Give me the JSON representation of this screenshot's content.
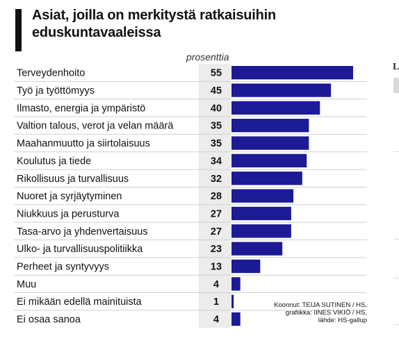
{
  "title": "Asiat, joilla on merkitystä ratkaisuihin eduskuntavaaleissa",
  "chart_data": {
    "type": "bar",
    "orientation": "horizontal",
    "title": "Asiat, joilla on merkitystä ratkaisuihin eduskuntavaaleissa",
    "value_header": "prosenttia",
    "categories": [
      "Terveydenhoito",
      "Työ ja työttömyys",
      "Ilmasto, energia ja ympäristö",
      "Valtion talous, verot ja velan määrä",
      "Maahanmuutto ja siirtolaisuus",
      "Koulutus ja tiede",
      "Rikollisuus ja turvallisuus",
      "Nuoret ja syrjäytyminen",
      "Niukkuus ja perusturva",
      "Tasa-arvo ja yhdenvertaisuus",
      "Ulko- ja turvallisuuspolitiikka",
      "Perheet ja syntyvyys",
      "Muu",
      "Ei mikään edellä mainituista",
      "Ei osaa sanoa"
    ],
    "values": [
      55,
      45,
      40,
      35,
      35,
      34,
      32,
      28,
      27,
      27,
      23,
      13,
      4,
      1,
      4
    ],
    "xlim": [
      0,
      55
    ],
    "bar_color": "#1c1a94",
    "grid": false,
    "legend": "none"
  },
  "credits": {
    "line1": "Koonnut: TEIJA SUTINEN / HS,",
    "line2": "grafiikka: IINES VIKIÖ / HS,",
    "line3": "lähde: HS-gallup"
  },
  "edge": {
    "letter": "L"
  }
}
